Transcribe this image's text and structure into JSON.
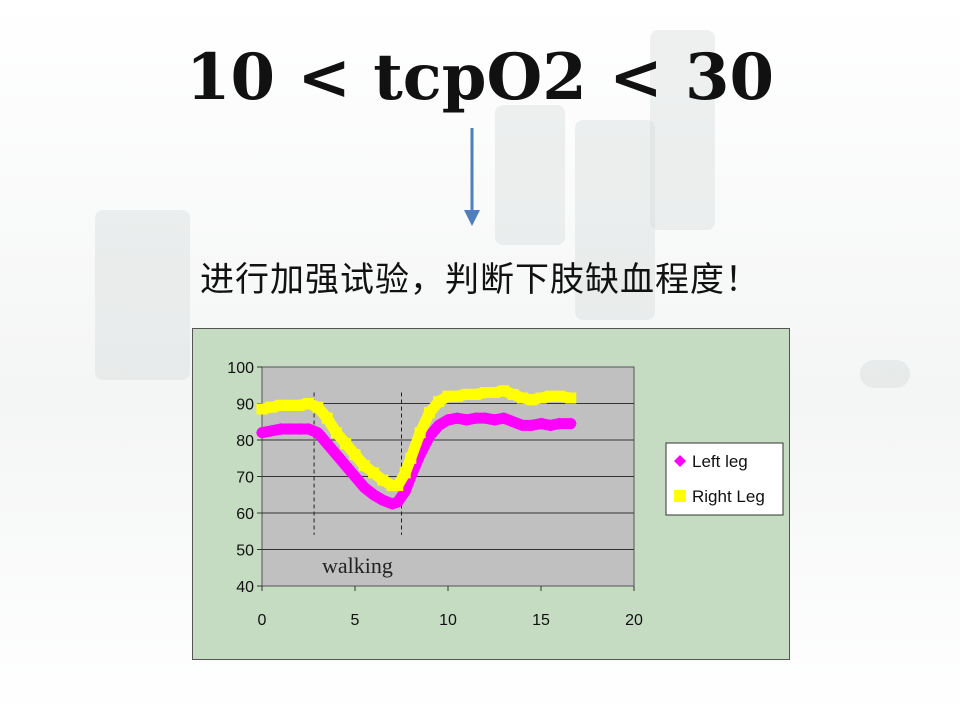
{
  "slide": {
    "title": "10 < tcpO2 < 30",
    "subtitle": "进行加强试验，判断下肢缺血程度！"
  },
  "colors": {
    "chart_bg": "#c5dcc2",
    "plot_bg": "#c0c0c0",
    "arrow": "#4f7fbf",
    "left_leg": "#ff00ff",
    "right_leg": "#ffff00"
  },
  "chart_data": {
    "type": "line",
    "xlim": [
      0,
      20
    ],
    "ylim": [
      40,
      100
    ],
    "x_ticks": [
      0,
      5,
      10,
      15,
      20
    ],
    "y_ticks": [
      40,
      50,
      60,
      70,
      80,
      90,
      100
    ],
    "grid": "horizontal",
    "legend_position": "right",
    "annotation": "walking",
    "markers_x": [
      2.8,
      7.5
    ],
    "series": [
      {
        "name": "Left leg",
        "marker": "diamond",
        "color": "#ff00ff",
        "points": [
          [
            0,
            82
          ],
          [
            0.5,
            82.5
          ],
          [
            1,
            83
          ],
          [
            1.5,
            83
          ],
          [
            2,
            83
          ],
          [
            2.5,
            83
          ],
          [
            3,
            82
          ],
          [
            3.5,
            79
          ],
          [
            4,
            76
          ],
          [
            4.5,
            73
          ],
          [
            5,
            70
          ],
          [
            5.5,
            67
          ],
          [
            6,
            65
          ],
          [
            6.5,
            63.5
          ],
          [
            7,
            62.5
          ],
          [
            7.3,
            63
          ],
          [
            7.7,
            66
          ],
          [
            8,
            70
          ],
          [
            8.5,
            76
          ],
          [
            9,
            81
          ],
          [
            9.5,
            84
          ],
          [
            10,
            85.5
          ],
          [
            10.5,
            86
          ],
          [
            11,
            85.5
          ],
          [
            11.5,
            86
          ],
          [
            12,
            86
          ],
          [
            12.5,
            85.5
          ],
          [
            13,
            86
          ],
          [
            13.5,
            85
          ],
          [
            14,
            84
          ],
          [
            14.5,
            84
          ],
          [
            15,
            84.5
          ],
          [
            15.5,
            84
          ],
          [
            16,
            84.5
          ],
          [
            16.6,
            84.5
          ]
        ]
      },
      {
        "name": "Right Leg",
        "marker": "square",
        "color": "#ffff00",
        "points": [
          [
            0,
            88.5
          ],
          [
            0.5,
            89
          ],
          [
            1,
            89.5
          ],
          [
            1.5,
            89.5
          ],
          [
            2,
            89.5
          ],
          [
            2.5,
            90
          ],
          [
            3,
            89
          ],
          [
            3.5,
            86
          ],
          [
            4,
            82
          ],
          [
            4.5,
            79
          ],
          [
            5,
            76
          ],
          [
            5.5,
            73
          ],
          [
            6,
            71
          ],
          [
            6.5,
            69
          ],
          [
            7,
            67.5
          ],
          [
            7.3,
            67.5
          ],
          [
            7.7,
            71
          ],
          [
            8,
            75
          ],
          [
            8.5,
            82
          ],
          [
            9,
            87.5
          ],
          [
            9.5,
            90.5
          ],
          [
            10,
            92
          ],
          [
            10.5,
            92
          ],
          [
            11,
            92.5
          ],
          [
            11.5,
            92.5
          ],
          [
            12,
            93
          ],
          [
            12.5,
            93
          ],
          [
            13,
            93.5
          ],
          [
            13.5,
            92.5
          ],
          [
            14,
            91.5
          ],
          [
            14.5,
            91
          ],
          [
            15,
            91.5
          ],
          [
            15.5,
            92
          ],
          [
            16,
            92
          ],
          [
            16.6,
            91.5
          ]
        ]
      }
    ]
  }
}
